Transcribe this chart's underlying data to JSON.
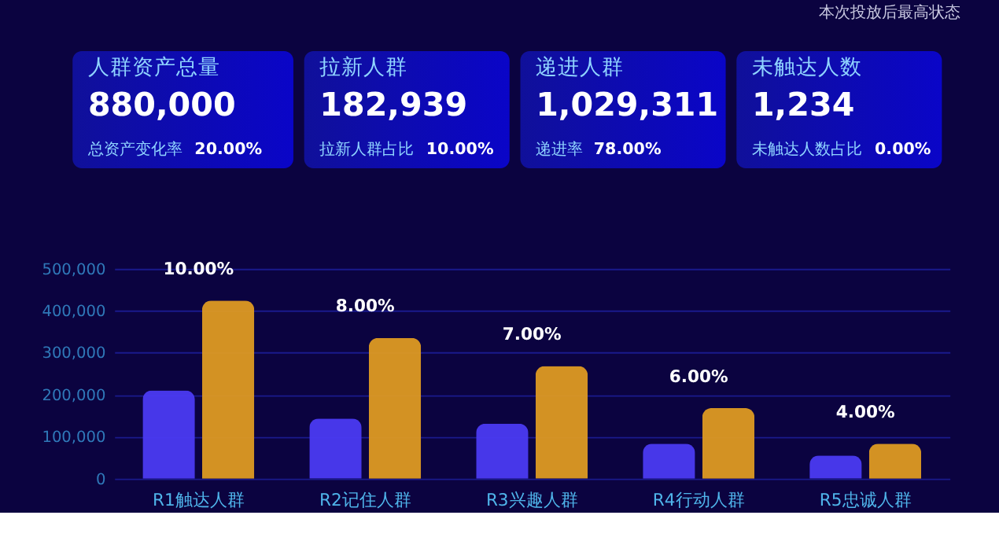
{
  "chart_data": [
    {
      "type": "other",
      "title": "本次投放后最高状态",
      "annotations": [
        "人群资产总量",
        "880,000",
        "总资产变化率",
        "20.00%",
        "拉新人群",
        "182,939",
        "拉新人群占比",
        "10.00%",
        "递进人群",
        "1,029,311",
        "递进率",
        "78.00%",
        "未触达人数",
        "1,234",
        "未触达人数占比",
        "0.00%"
      ]
    },
    {
      "type": "bar",
      "categories": [
        "R1触达人群",
        "R2记住人群",
        "R3兴趣人群",
        "R4行动人群",
        "R5忠诚人群"
      ],
      "series": [
        {
          "color": "#4b3af2",
          "values": [
            210000,
            143000,
            131000,
            83000,
            55000
          ]
        },
        {
          "color": "#de9a22",
          "values": [
            424000,
            335000,
            268000,
            168000,
            83000
          ]
        }
      ],
      "ylim": [
        0,
        500000
      ],
      "grid": "y",
      "yticks": [
        0,
        {
          "value": 100000,
          "label": "100,000"
        },
        {
          "value": 200000,
          "label": "200,000"
        },
        {
          "value": 300000,
          "label": "300,000"
        },
        {
          "value": 400000,
          "label": "400,000"
        },
        {
          "value": 500000,
          "label": "500,000"
        }
      ],
      "annotations": [
        "10.00%",
        "8.00%",
        "7.00%",
        "6.00%",
        "4.00%"
      ]
    }
  ]
}
